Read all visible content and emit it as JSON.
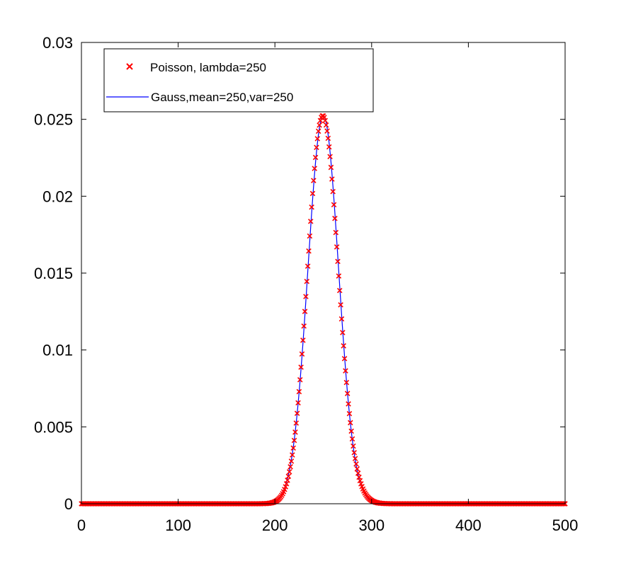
{
  "chart_data": {
    "type": "scatter",
    "title": "",
    "xlabel": "",
    "ylabel": "",
    "xlim": [
      0,
      500
    ],
    "ylim": [
      0,
      0.03
    ],
    "x_ticks": [
      "0",
      "100",
      "200",
      "300",
      "400",
      "500"
    ],
    "x_tick_values": [
      0,
      100,
      200,
      300,
      400,
      500
    ],
    "y_ticks": [
      "0",
      "0.005",
      "0.01",
      "0.015",
      "0.02",
      "0.025",
      "0.03"
    ],
    "y_tick_values": [
      0,
      0.005,
      0.01,
      0.015,
      0.02,
      0.025,
      0.03
    ],
    "grid": false,
    "legend_position": "top-left",
    "series": [
      {
        "name": "Poisson, lambda=250",
        "kind": "markers",
        "marker": "x",
        "color": "#ff0000",
        "lambda": 250,
        "x_range": [
          0,
          500
        ]
      },
      {
        "name": "Gauss,mean=250,var=250",
        "kind": "line",
        "color": "#0000ff",
        "mean": 250,
        "variance": 250,
        "x_range": [
          0,
          500
        ]
      }
    ]
  }
}
